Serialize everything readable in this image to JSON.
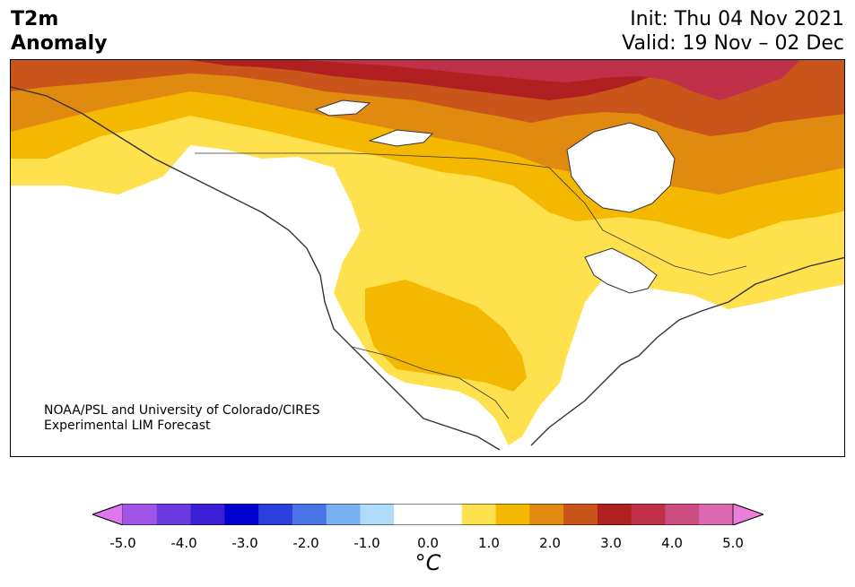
{
  "header": {
    "title_line1": "T2m",
    "title_line2": "Anomaly",
    "init": "Init: Thu 04 Nov 2021",
    "valid": "Valid: 19 Nov – 02 Dec"
  },
  "credit": {
    "line1": "NOAA/PSL and University of Colorado/CIRES",
    "line2": "Experimental LIM Forecast"
  },
  "map": {
    "region": "North America",
    "colors": {
      "land_neutral": "#ffffff",
      "anom_0_5": "#ffe14d",
      "anom_1_0": "#f5b800",
      "anom_1_5": "#e08a0f",
      "anom_2_0": "#c9551a",
      "anom_2_5": "#b02020",
      "anom_3_0": "#c03048",
      "anom_3_5": "#cc4d80",
      "water_great_lakes": "#ffffff",
      "coast": "#333333"
    }
  },
  "colorbar": {
    "colors": [
      "#dd77ee",
      "#a054e8",
      "#6a3be0",
      "#3a1fd4",
      "#0000d0",
      "#2a3fdc",
      "#4a74e6",
      "#79b0f2",
      "#b0dcfa",
      "#ffffff",
      "#ffffff",
      "#ffe14d",
      "#f5b800",
      "#e08a0f",
      "#c9551a",
      "#b02020",
      "#c03048",
      "#cc4d80",
      "#dc68b2",
      "#ea80dc"
    ],
    "ticks": [
      "-5.0",
      "-4.0",
      "-3.0",
      "-2.0",
      "-1.0",
      "0.0",
      "1.0",
      "2.0",
      "3.0",
      "4.0",
      "5.0"
    ],
    "unit_label": "°C"
  }
}
